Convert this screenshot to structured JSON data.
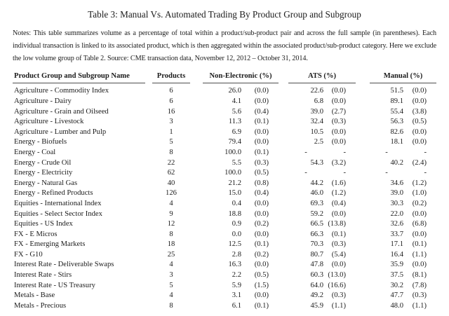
{
  "title": "Table 3: Manual Vs. Automated Trading By Product Group and Subgroup",
  "notes": "Notes: This table summarizes volume as a percentage of total within a product/sub-product pair and across the full sample (in parentheses). Each individual transaction is linked to its associated product, which is then aggregated within the associated product/sub-product category. Here we exclude the low volume group of Table 2. Source: CME transaction data, November 12, 2012 – October 31, 2014.",
  "table": {
    "columns": [
      "Product Group and Subgroup Name",
      "Products",
      "Non-Electronic (%)",
      "ATS (%)",
      "Manual (%)"
    ],
    "rows": [
      {
        "name": "Agriculture - Commodity Index",
        "products": "6",
        "non_electronic": [
          "26.0",
          "(0.0)"
        ],
        "ats": [
          "22.6",
          "(0.0)"
        ],
        "manual": [
          "51.5",
          "(0.0)"
        ]
      },
      {
        "name": "Agriculture - Dairy",
        "products": "6",
        "non_electronic": [
          "4.1",
          "(0.0)"
        ],
        "ats": [
          "6.8",
          "(0.0)"
        ],
        "manual": [
          "89.1",
          "(0.0)"
        ]
      },
      {
        "name": "Agriculture - Grain and Oilseed",
        "products": "16",
        "non_electronic": [
          "5.6",
          "(0.4)"
        ],
        "ats": [
          "39.0",
          "(2.7)"
        ],
        "manual": [
          "55.4",
          "(3.8)"
        ]
      },
      {
        "name": "Agriculture - Livestock",
        "products": "3",
        "non_electronic": [
          "11.3",
          "(0.1)"
        ],
        "ats": [
          "32.4",
          "(0.3)"
        ],
        "manual": [
          "56.3",
          "(0.5)"
        ]
      },
      {
        "name": "Agriculture - Lumber and Pulp",
        "products": "1",
        "non_electronic": [
          "6.9",
          "(0.0)"
        ],
        "ats": [
          "10.5",
          "(0.0)"
        ],
        "manual": [
          "82.6",
          "(0.0)"
        ]
      },
      {
        "name": "Energy - Biofuels",
        "products": "5",
        "non_electronic": [
          "79.4",
          "(0.0)"
        ],
        "ats": [
          "2.5",
          "(0.0)"
        ],
        "manual": [
          "18.1",
          "(0.0)"
        ]
      },
      {
        "name": "Energy - Coal",
        "products": "8",
        "non_electronic": [
          "100.0",
          "(0.1)"
        ],
        "ats": [
          "-",
          "-"
        ],
        "manual": [
          "-",
          "-"
        ]
      },
      {
        "name": "Energy - Crude Oil",
        "products": "22",
        "non_electronic": [
          "5.5",
          "(0.3)"
        ],
        "ats": [
          "54.3",
          "(3.2)"
        ],
        "manual": [
          "40.2",
          "(2.4)"
        ]
      },
      {
        "name": "Energy - Electricity",
        "products": "62",
        "non_electronic": [
          "100.0",
          "(0.5)"
        ],
        "ats": [
          "-",
          "-"
        ],
        "manual": [
          "-",
          "-"
        ]
      },
      {
        "name": "Energy - Natural Gas",
        "products": "40",
        "non_electronic": [
          "21.2",
          "(0.8)"
        ],
        "ats": [
          "44.2",
          "(1.6)"
        ],
        "manual": [
          "34.6",
          "(1.2)"
        ]
      },
      {
        "name": "Energy - Refined Products",
        "products": "126",
        "non_electronic": [
          "15.0",
          "(0.4)"
        ],
        "ats": [
          "46.0",
          "(1.2)"
        ],
        "manual": [
          "39.0",
          "(1.0)"
        ]
      },
      {
        "name": "Equities - International Index",
        "products": "4",
        "non_electronic": [
          "0.4",
          "(0.0)"
        ],
        "ats": [
          "69.3",
          "(0.4)"
        ],
        "manual": [
          "30.3",
          "(0.2)"
        ]
      },
      {
        "name": "Equities - Select Sector Index",
        "products": "9",
        "non_electronic": [
          "18.8",
          "(0.0)"
        ],
        "ats": [
          "59.2",
          "(0.0)"
        ],
        "manual": [
          "22.0",
          "(0.0)"
        ]
      },
      {
        "name": "Equities - US Index",
        "products": "12",
        "non_electronic": [
          "0.9",
          "(0.2)"
        ],
        "ats": [
          "66.5",
          "(13.8)"
        ],
        "manual": [
          "32.6",
          "(6.8)"
        ]
      },
      {
        "name": "FX - E Micros",
        "products": "8",
        "non_electronic": [
          "0.0",
          "(0.0)"
        ],
        "ats": [
          "66.3",
          "(0.1)"
        ],
        "manual": [
          "33.7",
          "(0.0)"
        ]
      },
      {
        "name": "FX - Emerging Markets",
        "products": "18",
        "non_electronic": [
          "12.5",
          "(0.1)"
        ],
        "ats": [
          "70.3",
          "(0.3)"
        ],
        "manual": [
          "17.1",
          "(0.1)"
        ]
      },
      {
        "name": "FX - G10",
        "products": "25",
        "non_electronic": [
          "2.8",
          "(0.2)"
        ],
        "ats": [
          "80.7",
          "(5.4)"
        ],
        "manual": [
          "16.4",
          "(1.1)"
        ]
      },
      {
        "name": "Interest Rate - Deliverable Swaps",
        "products": "4",
        "non_electronic": [
          "16.3",
          "(0.0)"
        ],
        "ats": [
          "47.8",
          "(0.0)"
        ],
        "manual": [
          "35.9",
          "(0.0)"
        ]
      },
      {
        "name": "Interest Rate - Stirs",
        "products": "3",
        "non_electronic": [
          "2.2",
          "(0.5)"
        ],
        "ats": [
          "60.3",
          "(13.0)"
        ],
        "manual": [
          "37.5",
          "(8.1)"
        ]
      },
      {
        "name": "Interest Rate - US Treasury",
        "products": "5",
        "non_electronic": [
          "5.9",
          "(1.5)"
        ],
        "ats": [
          "64.0",
          "(16.6)"
        ],
        "manual": [
          "30.2",
          "(7.8)"
        ]
      },
      {
        "name": "Metals - Base",
        "products": "4",
        "non_electronic": [
          "3.1",
          "(0.0)"
        ],
        "ats": [
          "49.2",
          "(0.3)"
        ],
        "manual": [
          "47.7",
          "(0.3)"
        ]
      },
      {
        "name": "Metals - Precious",
        "products": "8",
        "non_electronic": [
          "6.1",
          "(0.1)"
        ],
        "ats": [
          "45.9",
          "(1.1)"
        ],
        "manual": [
          "48.0",
          "(1.1)"
        ]
      }
    ]
  }
}
